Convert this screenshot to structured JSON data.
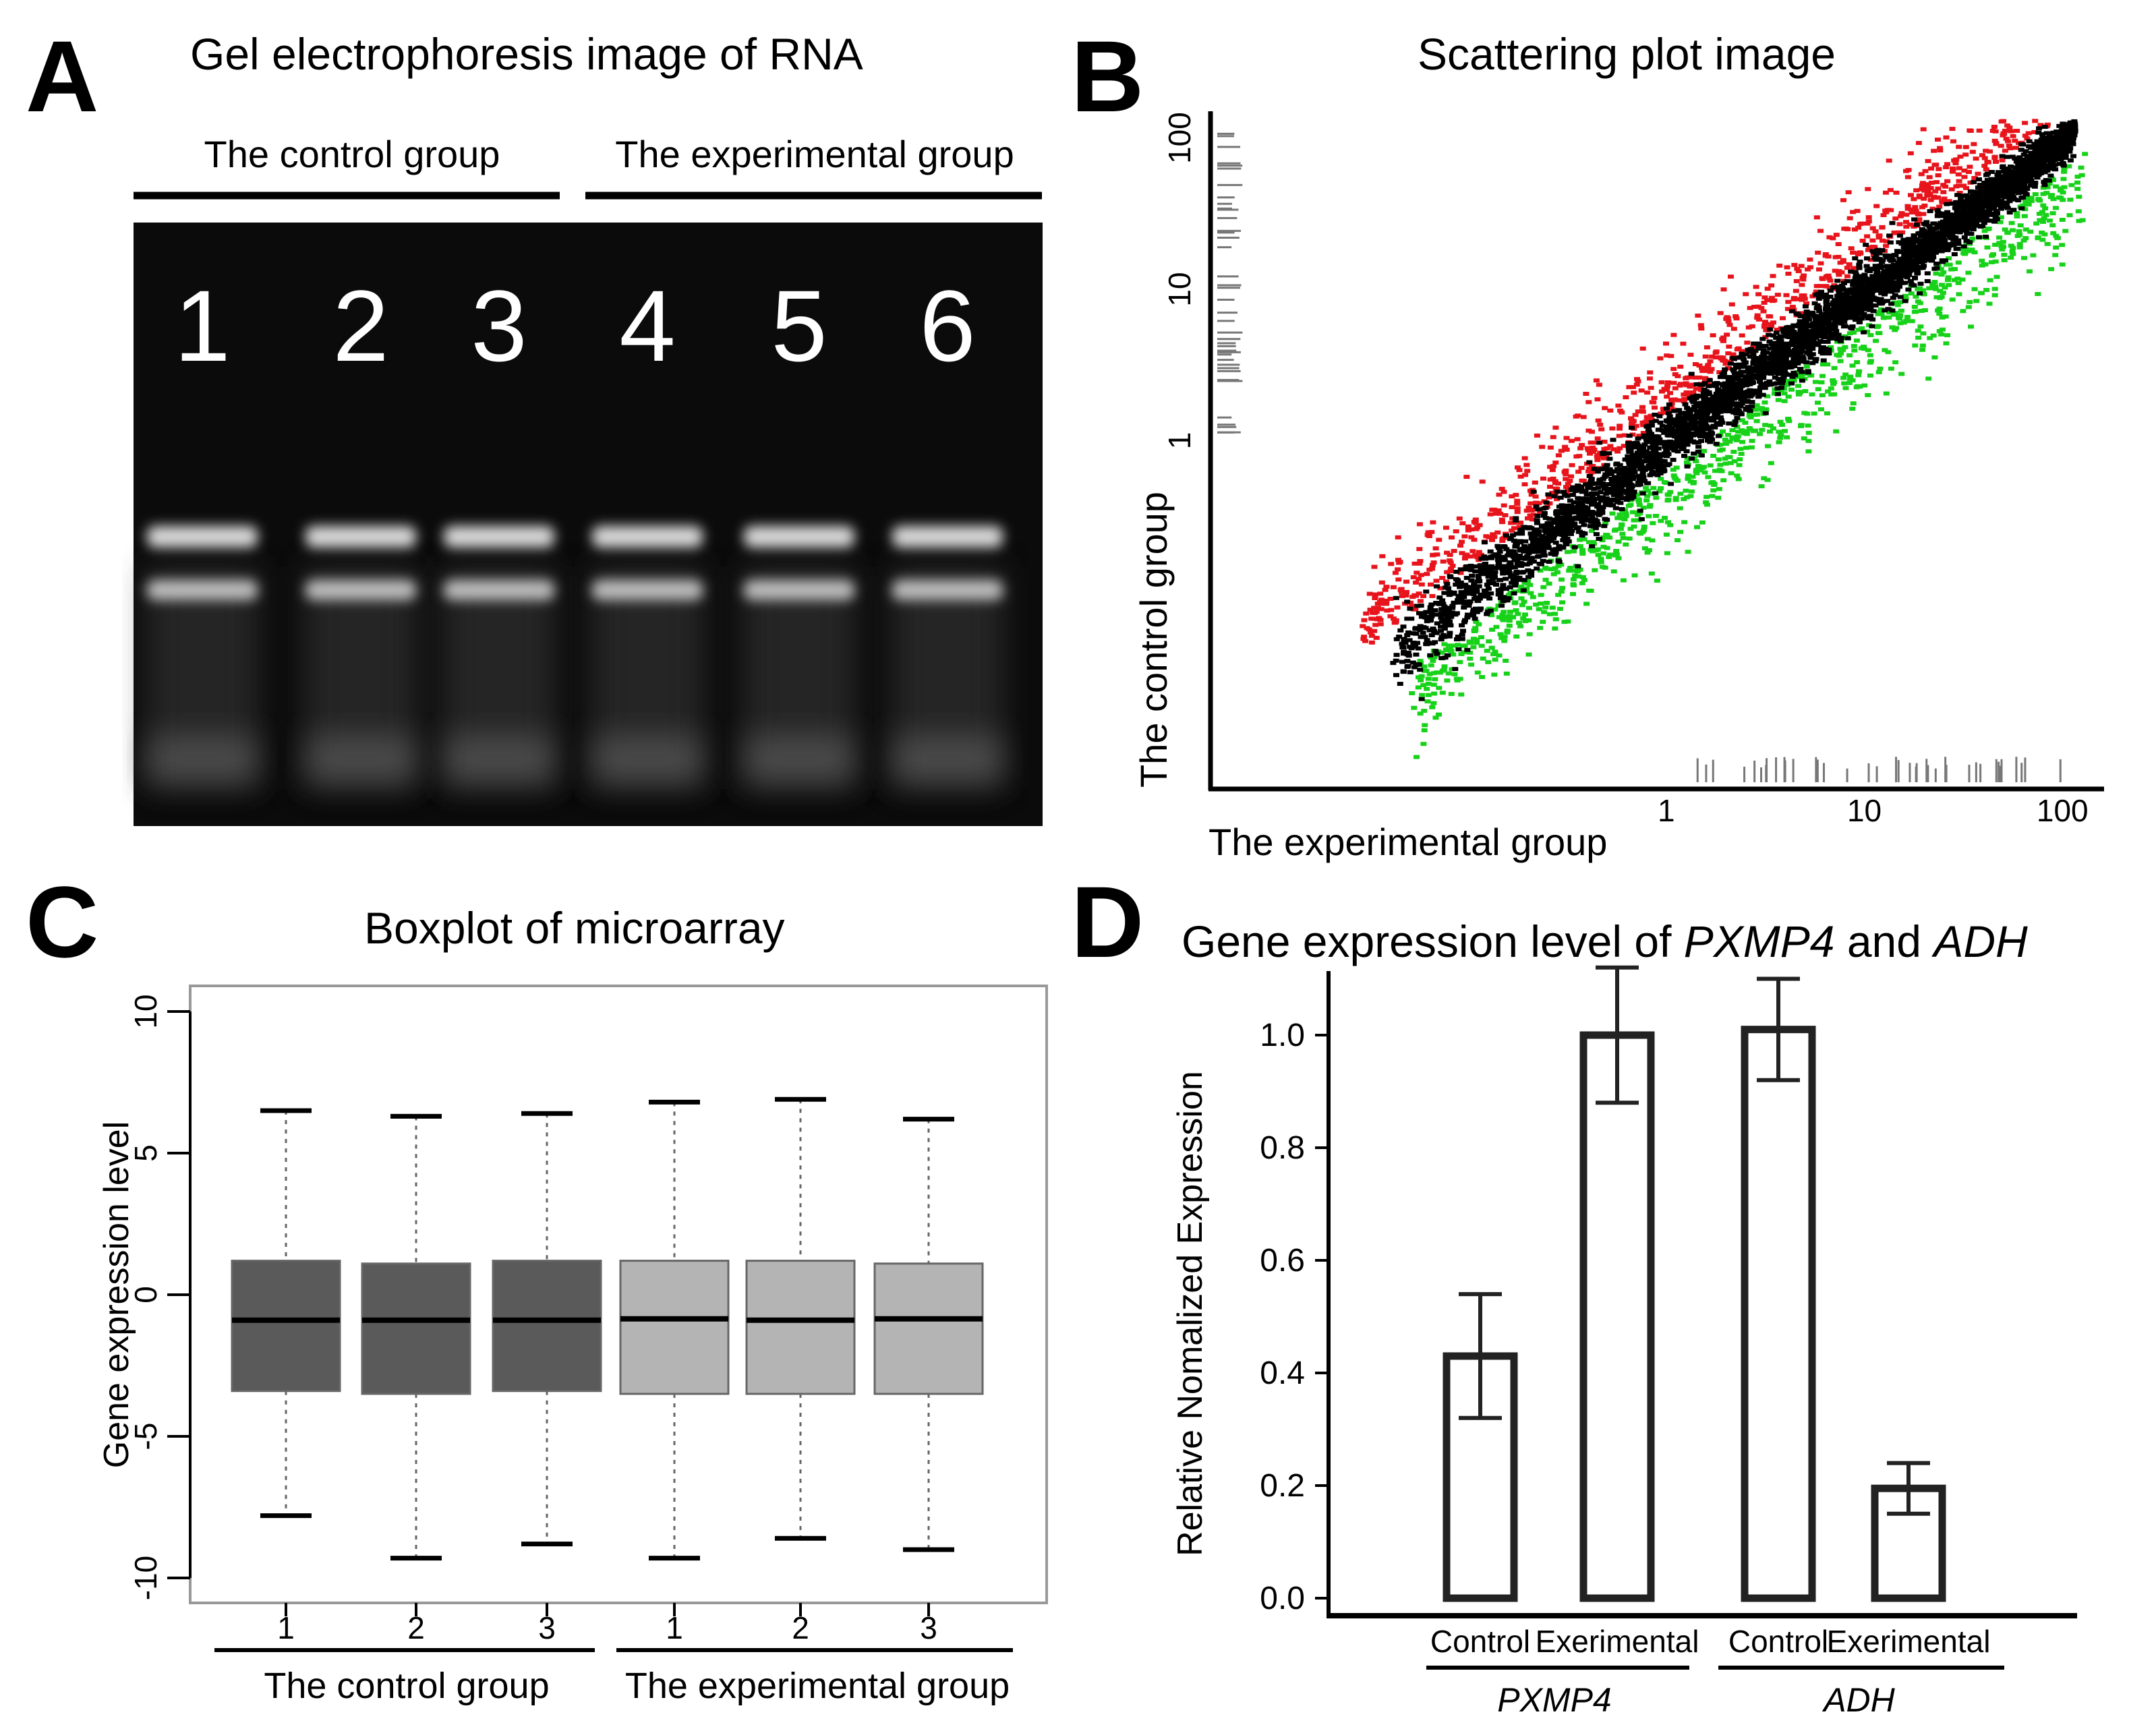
{
  "panels": {
    "A": {
      "letter": "A",
      "title": "Gel electrophoresis image of RNA",
      "groups": [
        "The control group",
        "The experimental group"
      ],
      "lanes": [
        "1",
        "2",
        "3",
        "4",
        "5",
        "6"
      ]
    },
    "B": {
      "letter": "B",
      "title": "Scattering plot image",
      "xlabel": "The experimental group",
      "ylabel": "The control group"
    },
    "C": {
      "letter": "C",
      "title": "Boxplot of microarray",
      "ylabel": "Gene expression level",
      "groups": [
        "The control group",
        "The experimental group"
      ]
    },
    "D": {
      "letter": "D",
      "title_pre": "Gene expression level of ",
      "title_gene1": "PXMP4",
      "title_mid": " and ",
      "title_gene2": "ADH",
      "ylabel": "Relative Nomalized Expression"
    }
  },
  "colors": {
    "up": "#e8141c",
    "down": "#18d21a",
    "neutral": "#000000",
    "control_box": "#5a5a5a",
    "experimental_box": "#b4b4b4"
  },
  "chart_data": [
    {
      "type": "scatter",
      "title": "Scattering plot image",
      "xlabel": "The experimental group",
      "ylabel": "The control group",
      "x_scale": "log",
      "y_scale": "log",
      "x_ticks": [
        "1",
        "10",
        "100"
      ],
      "y_ticks": [
        "1",
        "10",
        "100"
      ],
      "xlim": [
        0.005,
        150
      ],
      "ylim": [
        0.005,
        150
      ],
      "series": [
        {
          "color": "#000000",
          "trend": "y = x"
        },
        {
          "color": "#e8141c",
          "trend": "above y = x"
        },
        {
          "color": "#18d21a",
          "trend": "below y = x"
        }
      ]
    },
    {
      "type": "box",
      "title": "Boxplot of microarray",
      "ylabel": "Gene expression level",
      "ylim": [
        -10.5,
        11
      ],
      "y_ticks": [
        "10",
        "5",
        "0",
        "-5",
        "-10"
      ],
      "categories": [
        "1",
        "2",
        "3",
        "1",
        "2",
        "3"
      ],
      "groups": [
        "The control group",
        "The experimental group"
      ],
      "boxes": [
        {
          "q1": -3.4,
          "median": -0.9,
          "q3": 1.2,
          "whisker_low": -7.8,
          "whisker_high": 6.5
        },
        {
          "q1": -3.5,
          "median": -0.9,
          "q3": 1.1,
          "whisker_low": -9.3,
          "whisker_high": 6.3
        },
        {
          "q1": -3.4,
          "median": -0.9,
          "q3": 1.2,
          "whisker_low": -8.8,
          "whisker_high": 6.4
        },
        {
          "q1": -3.5,
          "median": -0.85,
          "q3": 1.2,
          "whisker_low": -9.3,
          "whisker_high": 6.8
        },
        {
          "q1": -3.5,
          "median": -0.9,
          "q3": 1.2,
          "whisker_low": -8.6,
          "whisker_high": 6.9
        },
        {
          "q1": -3.5,
          "median": -0.85,
          "q3": 1.1,
          "whisker_low": -9.0,
          "whisker_high": 6.2
        }
      ]
    },
    {
      "type": "bar",
      "title": "Gene expression level of PXMP4 and ADH",
      "ylabel": "Relative Nomalized Expression",
      "ylim": [
        0,
        1.1
      ],
      "y_ticks": [
        "0.0",
        "0.2",
        "0.4",
        "0.6",
        "0.8",
        "1.0"
      ],
      "categories": [
        "Control",
        "Exerimental",
        "Control",
        "Exerimental"
      ],
      "groups": [
        "PXMP4",
        "ADH"
      ],
      "values": [
        0.43,
        1.0,
        1.01,
        0.195
      ],
      "errors": [
        0.11,
        0.12,
        0.09,
        0.045
      ]
    }
  ]
}
